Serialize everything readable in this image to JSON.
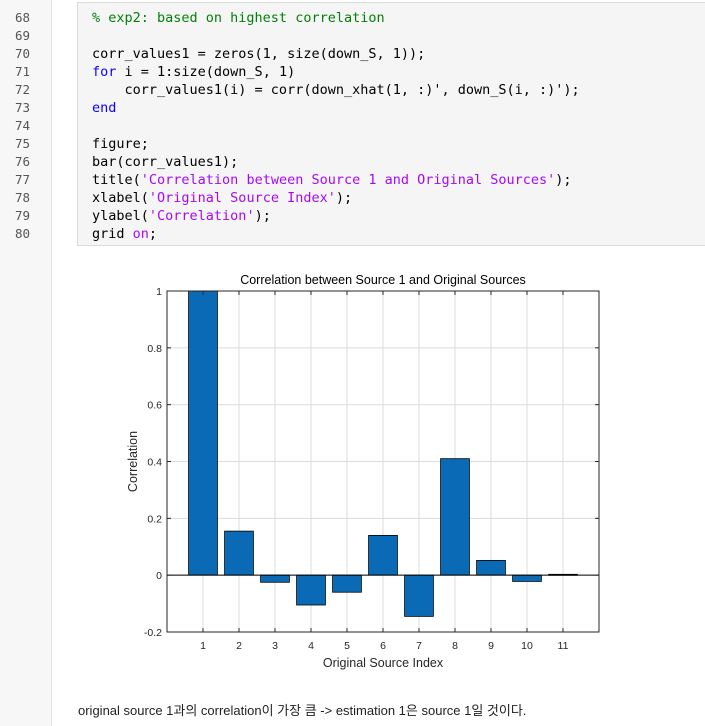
{
  "line_numbers": [
    "68",
    "69",
    "70",
    "71",
    "72",
    "73",
    "74",
    "75",
    "76",
    "77",
    "78",
    "79",
    "80"
  ],
  "code_lines": [
    [
      {
        "t": "% exp2: based on highest correlation",
        "c": "comment"
      }
    ],
    [],
    [
      {
        "t": "corr_values1 = zeros(1, size(down_S, 1));",
        "c": ""
      }
    ],
    [
      {
        "t": "for",
        "c": "kw"
      },
      {
        "t": " i = 1:size(down_S, 1)",
        "c": ""
      }
    ],
    [
      {
        "t": "    corr_values1(i) = corr(down_xhat(1, :)', down_S(i, :)');",
        "c": ""
      }
    ],
    [
      {
        "t": "end",
        "c": "kw"
      }
    ],
    [],
    [
      {
        "t": "figure;",
        "c": ""
      }
    ],
    [
      {
        "t": "bar(corr_values1);",
        "c": ""
      }
    ],
    [
      {
        "t": "title(",
        "c": ""
      },
      {
        "t": "'Correlation between Source 1 and Original Sources'",
        "c": "str"
      },
      {
        "t": ");",
        "c": ""
      }
    ],
    [
      {
        "t": "xlabel(",
        "c": ""
      },
      {
        "t": "'Original Source Index'",
        "c": "str"
      },
      {
        "t": ");",
        "c": ""
      }
    ],
    [
      {
        "t": "ylabel(",
        "c": ""
      },
      {
        "t": "'Correlation'",
        "c": "str"
      },
      {
        "t": ");",
        "c": ""
      }
    ],
    [
      {
        "t": "grid ",
        "c": ""
      },
      {
        "t": "on",
        "c": "str"
      },
      {
        "t": ";",
        "c": ""
      }
    ]
  ],
  "colors": {
    "bar_fill": "#0b6ab5",
    "comment": "#028009",
    "keyword": "#0e00ff",
    "string": "#a709f5"
  },
  "chart_data": {
    "type": "bar",
    "title": "Correlation between Source 1 and Original Sources",
    "xlabel": "Original Source Index",
    "ylabel": "Correlation",
    "categories": [
      "1",
      "2",
      "3",
      "4",
      "5",
      "6",
      "7",
      "8",
      "9",
      "10",
      "11"
    ],
    "values": [
      1.0,
      0.155,
      -0.025,
      -0.105,
      -0.06,
      0.14,
      -0.145,
      0.41,
      0.052,
      -0.022,
      0.003
    ],
    "ylim": [
      -0.2,
      1
    ],
    "yticks": [
      "-0.2",
      "0",
      "0.2",
      "0.4",
      "0.6",
      "0.8",
      "1"
    ],
    "grid": true
  },
  "note": "original source 1과의 correlation이 가장 큼 -> estimation 1은 source 1일 것이다."
}
